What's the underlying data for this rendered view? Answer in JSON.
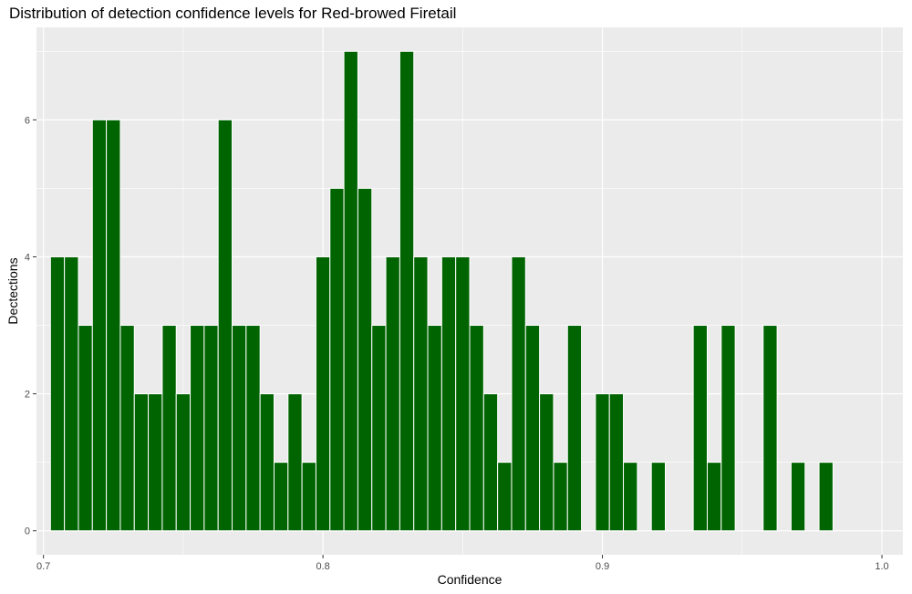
{
  "chart_data": {
    "type": "bar",
    "title": "Distribution of detection confidence levels for Red-browed Firetail",
    "xlabel": "Confidence",
    "ylabel": "Dectections",
    "xlim": [
      0.6975,
      1.0075
    ],
    "ylim": [
      -0.35,
      7.35
    ],
    "x_ticks": [
      0.7,
      0.8,
      0.9,
      1.0
    ],
    "x_tick_labels": [
      "0.7",
      "0.8",
      "0.9",
      "1.0"
    ],
    "y_ticks": [
      0,
      2,
      4,
      6
    ],
    "y_tick_labels": [
      "0",
      "2",
      "4",
      "6"
    ],
    "bin_width": 0.005,
    "grid": true,
    "bar_color": "#006400",
    "panel_color": "#ebebeb",
    "x": [
      0.705,
      0.71,
      0.715,
      0.72,
      0.725,
      0.73,
      0.735,
      0.74,
      0.745,
      0.75,
      0.755,
      0.76,
      0.765,
      0.77,
      0.775,
      0.78,
      0.785,
      0.79,
      0.795,
      0.8,
      0.805,
      0.81,
      0.815,
      0.82,
      0.825,
      0.83,
      0.835,
      0.84,
      0.845,
      0.85,
      0.855,
      0.86,
      0.865,
      0.87,
      0.875,
      0.88,
      0.885,
      0.89,
      0.895,
      0.9,
      0.905,
      0.91,
      0.915,
      0.92,
      0.925,
      0.93,
      0.935,
      0.94,
      0.945,
      0.95,
      0.955,
      0.96,
      0.965,
      0.97,
      0.975,
      0.98
    ],
    "values": [
      4,
      4,
      3,
      6,
      6,
      3,
      2,
      2,
      3,
      2,
      3,
      3,
      6,
      3,
      3,
      2,
      1,
      2,
      1,
      4,
      5,
      7,
      5,
      3,
      4,
      7,
      4,
      3,
      4,
      4,
      3,
      2,
      1,
      4,
      3,
      2,
      1,
      3,
      0,
      2,
      2,
      1,
      0,
      1,
      0,
      0,
      3,
      1,
      3,
      0,
      0,
      3,
      0,
      1,
      0,
      1
    ]
  }
}
